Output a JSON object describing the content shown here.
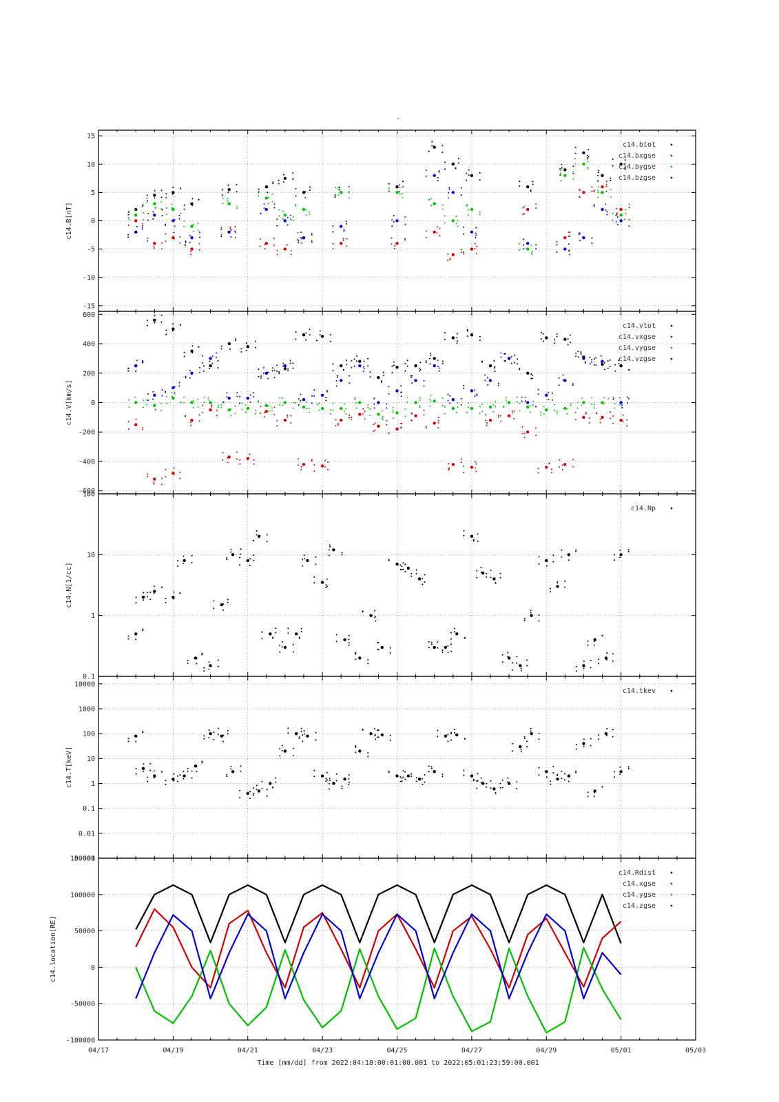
{
  "figure": {
    "title": "-",
    "x_tick_labels": [
      "04/17",
      "04/19",
      "04/21",
      "04/23",
      "04/25",
      "04/27",
      "04/29",
      "05/01",
      "05/03"
    ],
    "x_axis_label": "Time [mm/dd]  from 2022:04:18:00:01:00.001  to  2022:05:01:23:59:00.001"
  },
  "chart_data": [
    {
      "type": "scatter",
      "ylabel": "c14.B[nT]",
      "ylim": [
        -16,
        16
      ],
      "yticks": [
        15,
        10,
        5,
        0,
        -5,
        -10,
        -15
      ],
      "xlim_days": [
        0,
        16
      ],
      "grid": true,
      "legend_position": "top-right",
      "series": [
        {
          "name": "c14.btot",
          "color": "#000000",
          "x": [
            1,
            1.5,
            2,
            2.5,
            3.5,
            4.5,
            5,
            5.5,
            6.5,
            8,
            9,
            9.5,
            10,
            11.5,
            12.5,
            13,
            13.5,
            14
          ],
          "y": [
            2,
            4.5,
            5,
            3,
            5.5,
            6,
            7.5,
            5,
            5,
            6,
            13,
            10,
            8,
            6,
            9,
            12,
            8,
            10
          ]
        },
        {
          "name": "c14.bxgse",
          "color": "#d00000",
          "x": [
            1,
            1.5,
            2,
            2.5,
            3.5,
            4.5,
            5,
            5.5,
            6.5,
            8,
            9,
            9.5,
            10,
            11.5,
            12.5,
            13,
            13.5,
            14
          ],
          "y": [
            0,
            -4,
            -3,
            -5,
            -2,
            -4,
            -5,
            -3,
            -4,
            -4,
            -2,
            -6,
            -5,
            2,
            -3,
            5,
            6,
            2
          ]
        },
        {
          "name": "c14.bygse",
          "color": "#00c000",
          "x": [
            1,
            1.5,
            2,
            2.5,
            3.5,
            4.5,
            5,
            5.5,
            6.5,
            8,
            9,
            9.5,
            10,
            11.5,
            12.5,
            13,
            13.5,
            14
          ],
          "y": [
            1,
            3,
            2,
            -1,
            3,
            4,
            1,
            2,
            5,
            5,
            3,
            0,
            2,
            -5,
            8,
            10,
            5,
            1
          ]
        },
        {
          "name": "c14.bzgse",
          "color": "#0000d0",
          "x": [
            1,
            1.5,
            2,
            2.5,
            3.5,
            4.5,
            5,
            5.5,
            6.5,
            8,
            9,
            9.5,
            10,
            11.5,
            12.5,
            13,
            13.5,
            14
          ],
          "y": [
            -2,
            1,
            0,
            -3,
            -2,
            2,
            0,
            -3,
            -1,
            0,
            8,
            5,
            -2,
            -4,
            -5,
            -3,
            2,
            0
          ]
        }
      ]
    },
    {
      "type": "scatter",
      "ylabel": "c14.V[km/s]",
      "ylim": [
        -620,
        620
      ],
      "yticks": [
        600,
        400,
        200,
        0,
        -200,
        -400,
        -600
      ],
      "xlim_days": [
        0,
        16
      ],
      "grid": true,
      "legend_position": "top-right",
      "series": [
        {
          "name": "c14.vtot",
          "color": "#000000",
          "x": [
            1,
            1.5,
            2,
            2.5,
            3,
            3.5,
            4,
            4.5,
            5,
            5.5,
            6,
            6.5,
            7,
            7.5,
            8,
            8.5,
            9,
            9.5,
            10,
            10.5,
            11,
            11.5,
            12,
            12.5,
            13,
            13.5,
            14
          ],
          "y": [
            250,
            560,
            500,
            350,
            250,
            400,
            380,
            200,
            230,
            460,
            450,
            250,
            280,
            170,
            240,
            250,
            300,
            440,
            460,
            250,
            300,
            200,
            440,
            430,
            310,
            260,
            250
          ]
        },
        {
          "name": "c14.vxgse",
          "color": "#d00000",
          "x": [
            1,
            1.5,
            2,
            2.5,
            3,
            3.5,
            4,
            4.5,
            5,
            5.5,
            6,
            6.5,
            7,
            7.5,
            8,
            8.5,
            9,
            9.5,
            10,
            10.5,
            11,
            11.5,
            12,
            12.5,
            13,
            13.5,
            14
          ],
          "y": [
            -150,
            -520,
            -480,
            -120,
            -50,
            -370,
            -380,
            -60,
            -120,
            -420,
            -430,
            -120,
            -80,
            -160,
            -180,
            -90,
            -140,
            -420,
            -440,
            -120,
            -90,
            -200,
            -440,
            -420,
            -100,
            -100,
            -120
          ]
        },
        {
          "name": "c14.vygse",
          "color": "#00c000",
          "x": [
            1,
            1.5,
            2,
            2.5,
            3,
            3.5,
            4,
            4.5,
            5,
            5.5,
            6,
            6.5,
            7,
            7.5,
            8,
            8.5,
            9,
            9.5,
            10,
            10.5,
            11,
            11.5,
            12,
            12.5,
            13,
            13.5,
            14
          ],
          "y": [
            0,
            -20,
            30,
            0,
            0,
            -50,
            -40,
            -20,
            0,
            -30,
            -40,
            -40,
            0,
            -80,
            -70,
            0,
            10,
            -40,
            -40,
            -30,
            0,
            -30,
            -50,
            -40,
            0,
            0,
            0
          ]
        },
        {
          "name": "c14.vzgse",
          "color": "#0000d0",
          "x": [
            1,
            1.5,
            2,
            2.5,
            3,
            3.5,
            4,
            4.5,
            5,
            5.5,
            6,
            6.5,
            7,
            7.5,
            8,
            8.5,
            9,
            9.5,
            10,
            10.5,
            11,
            11.5,
            12,
            12.5,
            13,
            13.5,
            14
          ],
          "y": [
            250,
            50,
            100,
            200,
            300,
            30,
            30,
            200,
            250,
            20,
            50,
            150,
            250,
            0,
            80,
            150,
            250,
            20,
            80,
            150,
            300,
            0,
            50,
            150,
            300,
            280,
            0
          ]
        }
      ]
    },
    {
      "type": "scatter",
      "ylabel": "c14.N[1/cc]",
      "yscale": "log",
      "ylim": [
        0.1,
        100
      ],
      "yticks": [
        100,
        10,
        1,
        0.1
      ],
      "xlim_days": [
        0,
        16
      ],
      "grid": true,
      "legend_position": "top-right",
      "series": [
        {
          "name": "c14.Np",
          "color": "#000000",
          "x": [
            1,
            1.2,
            1.5,
            2,
            2.3,
            2.6,
            3,
            3.3,
            3.6,
            4,
            4.3,
            4.6,
            5,
            5.3,
            5.6,
            6,
            6.3,
            6.6,
            7,
            7.3,
            7.6,
            8,
            8.3,
            8.6,
            9,
            9.3,
            9.6,
            10,
            10.3,
            10.6,
            11,
            11.3,
            11.6,
            12,
            12.3,
            12.6,
            13,
            13.3,
            13.6,
            14
          ],
          "y": [
            0.5,
            2,
            2.5,
            2,
            8,
            0.2,
            0.15,
            1.5,
            10,
            8,
            20,
            0.5,
            0.3,
            0.5,
            8,
            3.5,
            12,
            0.4,
            0.2,
            1,
            0.3,
            7,
            6,
            4,
            0.3,
            0.3,
            0.5,
            20,
            5,
            4,
            0.2,
            0.15,
            1,
            8,
            3,
            10,
            0.15,
            0.4,
            0.2,
            10
          ]
        }
      ]
    },
    {
      "type": "scatter",
      "ylabel": "c14.T[keV]",
      "yscale": "log",
      "ylim": [
        0.001,
        20000
      ],
      "yticks": [
        10000,
        1000,
        100,
        10,
        1,
        0.1,
        0.01,
        0.001
      ],
      "xlim_days": [
        0,
        16
      ],
      "grid": true,
      "legend_position": "top-right",
      "series": [
        {
          "name": "c14.tkev",
          "color": "#000000",
          "x": [
            1,
            1.2,
            1.5,
            2,
            2.3,
            2.6,
            3,
            3.3,
            3.6,
            4,
            4.3,
            4.6,
            5,
            5.3,
            5.6,
            6,
            6.3,
            6.6,
            7,
            7.3,
            7.6,
            8,
            8.3,
            8.6,
            9,
            9.3,
            9.6,
            10,
            10.3,
            10.6,
            11,
            11.3,
            11.6,
            12,
            12.3,
            12.6,
            13,
            13.3,
            13.6,
            14
          ],
          "y": [
            80,
            4,
            2,
            1.5,
            2,
            5,
            100,
            80,
            3,
            0.4,
            0.5,
            1,
            20,
            100,
            80,
            2,
            1,
            1.5,
            20,
            100,
            90,
            2,
            2,
            1.5,
            3,
            80,
            90,
            2,
            1,
            0.6,
            1,
            30,
            100,
            3,
            1.5,
            2,
            40,
            0.5,
            100,
            3
          ]
        }
      ]
    },
    {
      "type": "line",
      "ylabel": "c14.location[RE]",
      "ylim": [
        -100000,
        150000
      ],
      "yticks": [
        150000,
        100000,
        50000,
        0,
        -50000,
        -100000
      ],
      "xlim_days": [
        0,
        16
      ],
      "grid": true,
      "legend_position": "top-right",
      "series": [
        {
          "name": "c14.Rdist",
          "color": "#000000",
          "x": [
            1,
            1.5,
            2,
            2.5,
            3,
            3.5,
            4,
            4.5,
            5,
            5.5,
            6,
            6.5,
            7,
            7.5,
            8,
            8.5,
            9,
            9.5,
            10,
            10.5,
            11,
            11.5,
            12,
            12.5,
            13,
            13.5,
            14
          ],
          "y": [
            52000,
            100000,
            113000,
            100000,
            34000,
            100000,
            113000,
            100000,
            34000,
            100000,
            113000,
            100000,
            34000,
            100000,
            113000,
            100000,
            34000,
            100000,
            113000,
            100000,
            34000,
            100000,
            113000,
            100000,
            34000,
            100000,
            33000
          ]
        },
        {
          "name": "c14.xgse",
          "color": "#d00000",
          "x": [
            1,
            1.5,
            2,
            2.5,
            3,
            3.5,
            4,
            4.5,
            5,
            5.5,
            6,
            6.5,
            7,
            7.5,
            8,
            8.5,
            9,
            9.5,
            10,
            10.5,
            11,
            11.5,
            12,
            12.5,
            13,
            13.5,
            14
          ],
          "y": [
            28000,
            80000,
            55000,
            0,
            -28000,
            60000,
            78000,
            20000,
            -28000,
            55000,
            75000,
            25000,
            -28000,
            50000,
            73000,
            25000,
            -28000,
            50000,
            70000,
            25000,
            -28000,
            45000,
            67000,
            20000,
            -27000,
            40000,
            63000
          ]
        },
        {
          "name": "c14.ygse",
          "color": "#00c000",
          "x": [
            1,
            1.5,
            2,
            2.5,
            3,
            3.5,
            4,
            4.5,
            5,
            5.5,
            6,
            6.5,
            7,
            7.5,
            8,
            8.5,
            9,
            9.5,
            10,
            10.5,
            11,
            11.5,
            12,
            12.5,
            13,
            13.5,
            14
          ],
          "y": [
            0,
            -60000,
            -77000,
            -40000,
            23000,
            -50000,
            -80000,
            -55000,
            24000,
            -45000,
            -83000,
            -60000,
            25000,
            -40000,
            -85000,
            -70000,
            26000,
            -40000,
            -88000,
            -75000,
            26000,
            -40000,
            -90000,
            -75000,
            27000,
            -30000,
            -72000
          ]
        },
        {
          "name": "c14.zgse",
          "color": "#0000d0",
          "x": [
            1,
            1.5,
            2,
            2.5,
            3,
            3.5,
            4,
            4.5,
            5,
            5.5,
            6,
            6.5,
            7,
            7.5,
            8,
            8.5,
            9,
            9.5,
            10,
            10.5,
            11,
            11.5,
            12,
            12.5,
            13,
            13.5,
            14
          ],
          "y": [
            -43000,
            20000,
            72000,
            50000,
            -43000,
            20000,
            73000,
            50000,
            -43000,
            20000,
            73000,
            50000,
            -43000,
            20000,
            73000,
            50000,
            -43000,
            20000,
            73000,
            50000,
            -43000,
            20000,
            73000,
            50000,
            -43000,
            20000,
            -10000
          ]
        }
      ]
    }
  ]
}
